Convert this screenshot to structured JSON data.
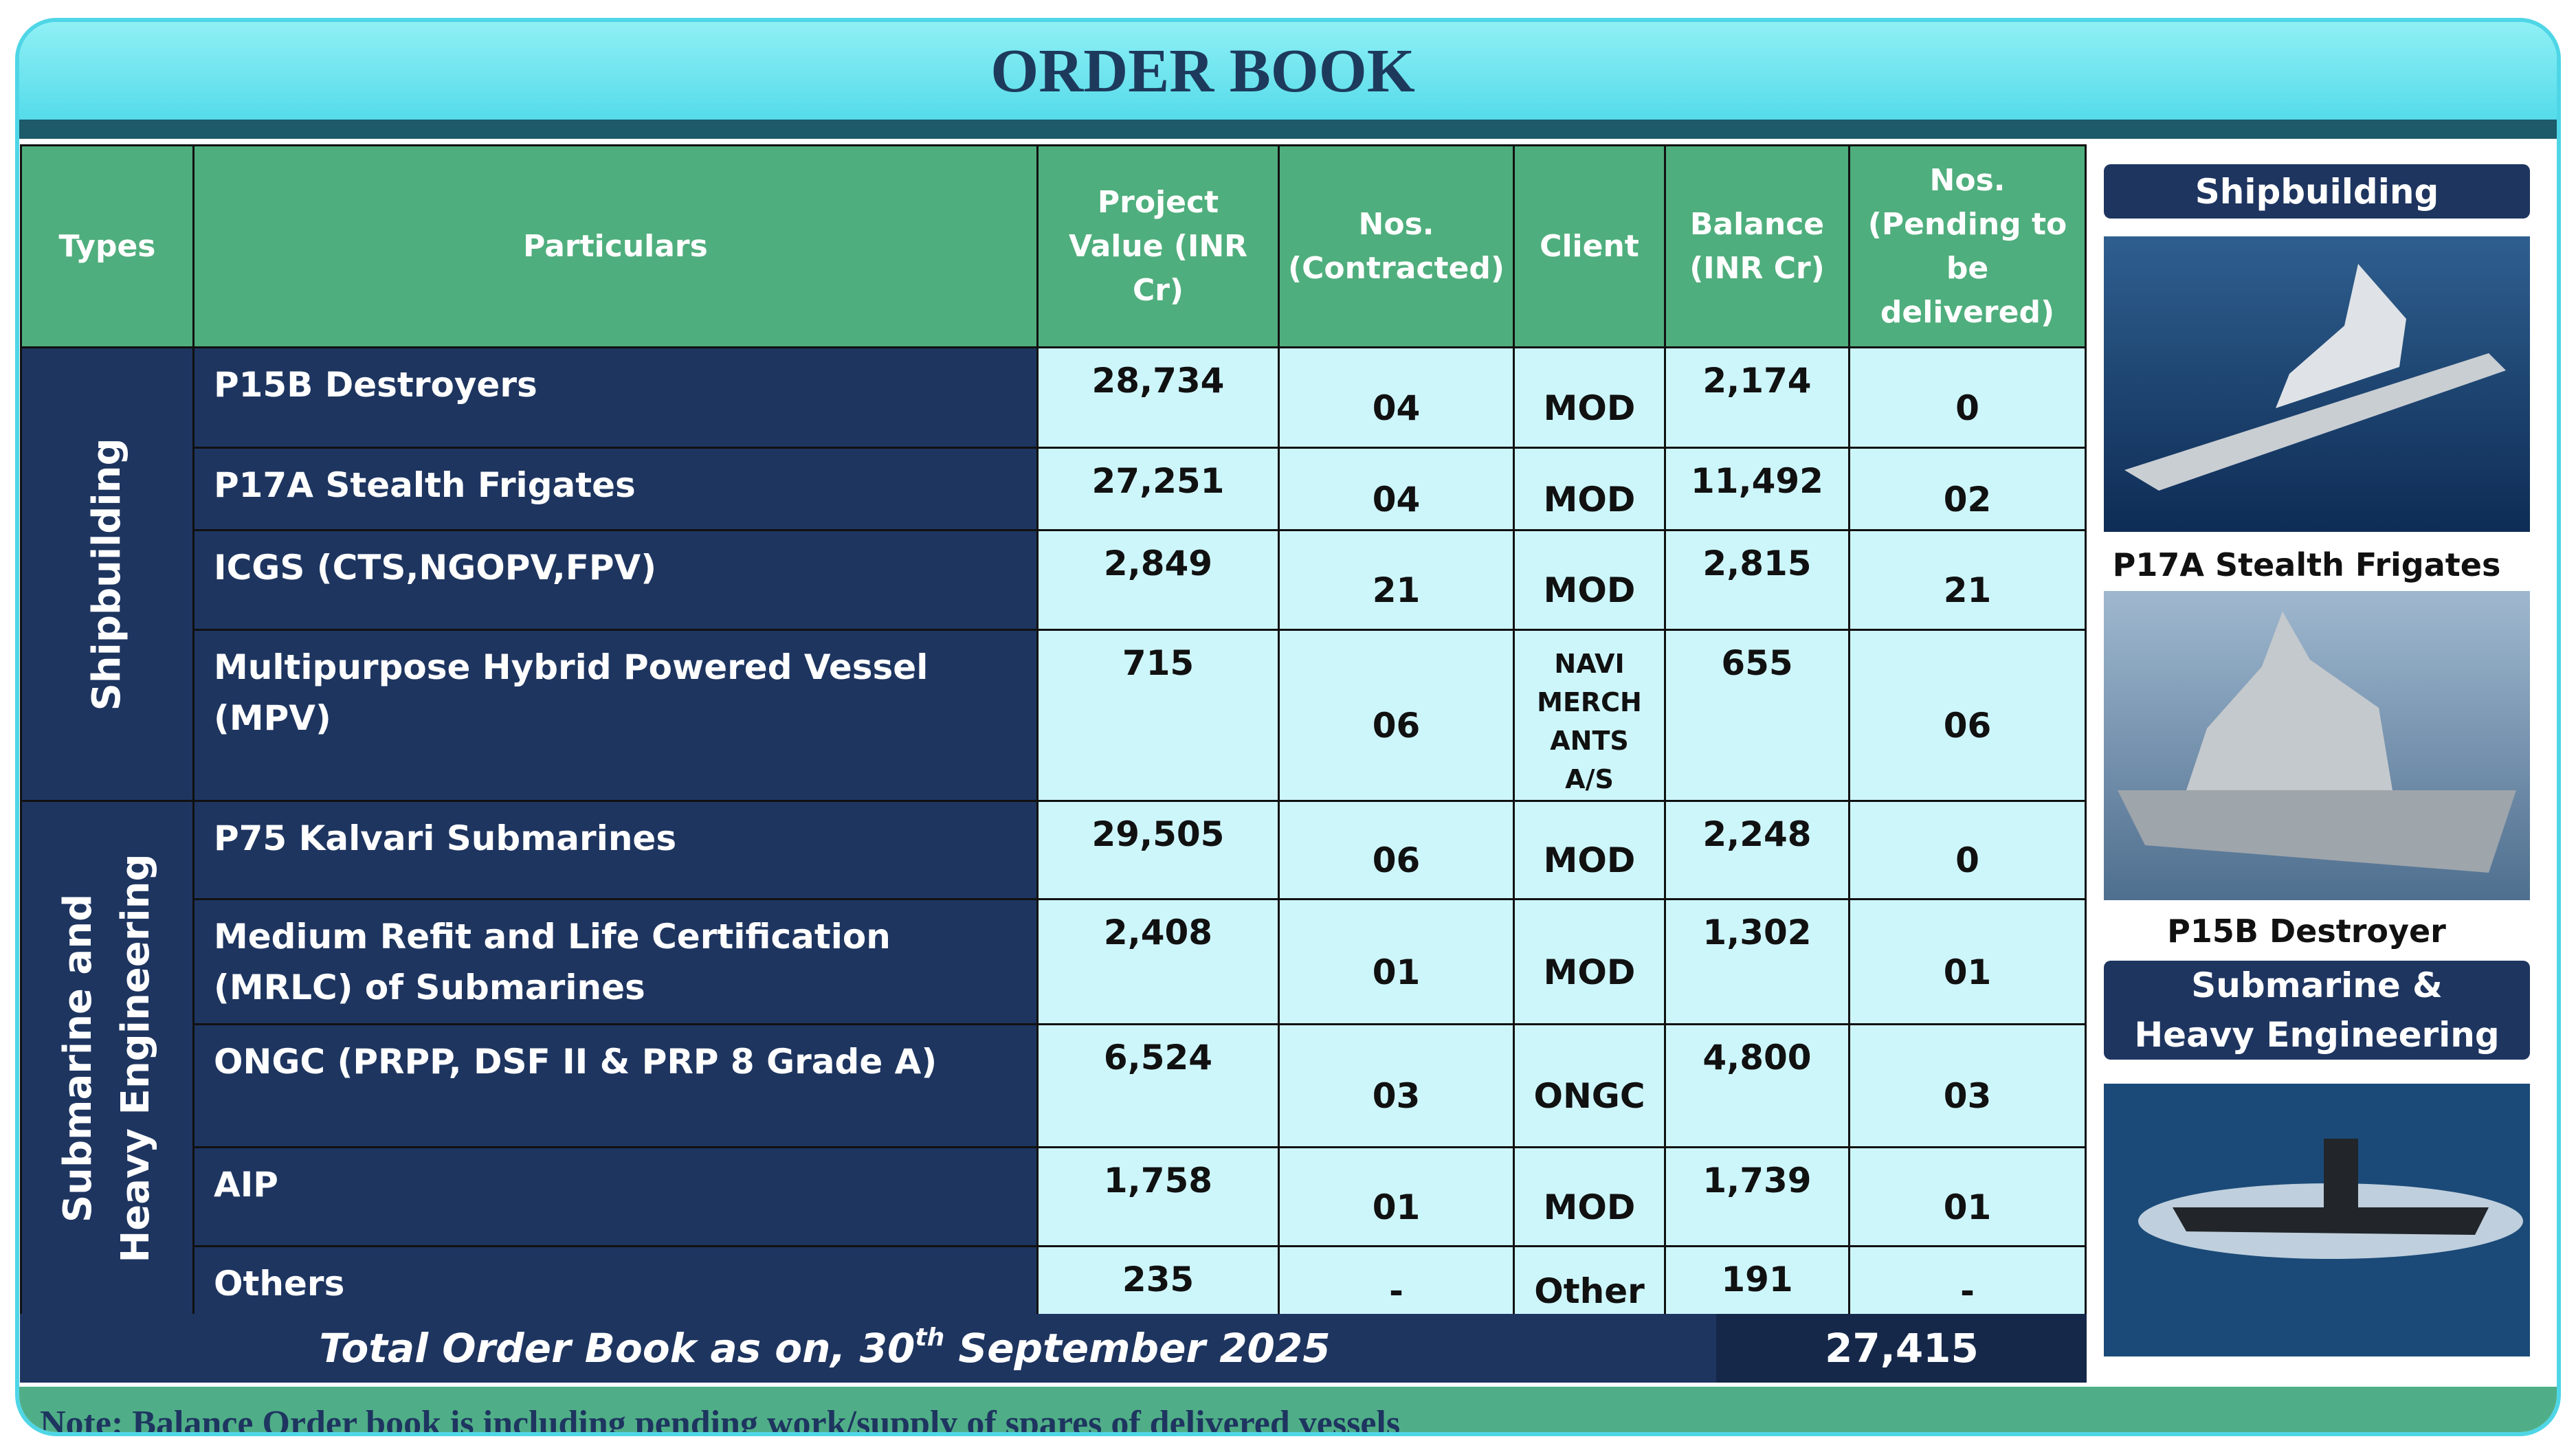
{
  "title": "ORDER BOOK",
  "table": {
    "headers": [
      "Types",
      "Particulars",
      "Project Value (INR Cr)",
      "Nos. (Contracted)",
      "Client",
      "Balance (INR Cr)",
      "Nos. (Pending to be delivered)"
    ],
    "groups": [
      {
        "label": "Shipbuilding",
        "rows": [
          [
            "P15B Destroyers",
            "28,734",
            "04",
            "MOD",
            "2,174",
            "0"
          ],
          [
            "P17A Stealth Frigates",
            "27,251",
            "04",
            "MOD",
            "11,492",
            "02"
          ],
          [
            "ICGS (CTS,NGOPV,FPV)",
            "2,849",
            "21",
            "MOD",
            "2,815",
            "21"
          ],
          [
            "Multipurpose Hybrid Powered Vessel (MPV)",
            "715",
            "06",
            "NAVI MERCH ANTS A/S",
            "655",
            "06"
          ]
        ]
      },
      {
        "label": "Submarine and Heavy Engineering",
        "rows": [
          [
            "P75 Kalvari Submarines",
            "29,505",
            "06",
            "MOD",
            "2,248",
            "0"
          ],
          [
            "Medium Refit and Life Certification (MRLC) of Submarines",
            "2,408",
            "01",
            "MOD",
            "1,302",
            "01"
          ],
          [
            "ONGC (PRPP, DSF II & PRP 8 Grade A)",
            "6,524",
            "03",
            "ONGC",
            "4,800",
            "03"
          ],
          [
            "AIP",
            "1,758",
            "01",
            "MOD",
            "1,739",
            "01"
          ],
          [
            "Others",
            "235",
            "-",
            "Other",
            "191",
            "-"
          ]
        ]
      }
    ],
    "total": {
      "label_start": "Total Order Book as on, 30",
      "label_sup": "th",
      "label_end": " September 2025",
      "value": "27,415"
    }
  },
  "note": "Note: Balance Order book is including pending work/supply of spares of delivered vessels",
  "sidebar": {
    "shipbuilding_label": "Shipbuilding",
    "caption_1": "P17A Stealth Frigates",
    "caption_2": "P15B Destroyer",
    "submarine_label": "Submarine & Heavy Engineering"
  }
}
